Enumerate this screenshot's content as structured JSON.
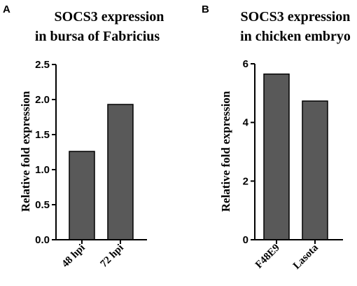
{
  "panels": {
    "a": {
      "letter": "A",
      "title_line1": "SOCS3 expression",
      "title_line2": "in  bursa of Fabricius"
    },
    "b": {
      "letter": "B",
      "title_line1": "SOCS3 expression",
      "title_line2": "in chicken embryo"
    }
  },
  "colors": {
    "bar_fill": "#595959",
    "bar_stroke": "#000000",
    "axis": "#000000"
  },
  "chart_data": [
    {
      "type": "bar",
      "title": "SOCS3 expression in  bursa of Fabricius",
      "categories": [
        "48 hpi",
        "72 hpi"
      ],
      "values": [
        1.26,
        1.93
      ],
      "xlabel": "",
      "ylabel": "Relative fold expression",
      "ylim": [
        0,
        2.5
      ],
      "yticks": [
        "0.0",
        "0.5",
        "1.0",
        "1.5",
        "2.0",
        "2.5"
      ],
      "grid": false
    },
    {
      "type": "bar",
      "title": "SOCS3 expression in chicken embryo",
      "categories": [
        "F48E9",
        "Lasota"
      ],
      "values": [
        5.65,
        4.73
      ],
      "xlabel": "",
      "ylabel": "Relative fold expression",
      "ylim": [
        0,
        6
      ],
      "yticks": [
        "0",
        "2",
        "4",
        "6"
      ],
      "grid": false
    }
  ]
}
